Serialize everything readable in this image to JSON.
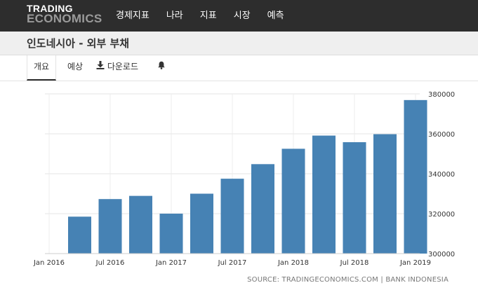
{
  "header": {
    "logo_line1": "TRADING",
    "logo_line2": "ECONOMICS",
    "nav": [
      "경제지표",
      "나라",
      "지표",
      "시장",
      "예측"
    ]
  },
  "page_title": "인도네시아 - 외부 부채",
  "tabs": {
    "overview": "개요",
    "forecast": "예상",
    "download": "다운로드"
  },
  "source": "SOURCE: TRADINGECONOMICS.COM | BANK INDONESIA",
  "colors": {
    "bar": "#4682b4",
    "topbar": "#2d2d2d"
  },
  "chart_data": {
    "type": "bar",
    "title": "",
    "xlabel": "",
    "ylabel": "",
    "categories": [
      "Apr 2016",
      "Jul 2016",
      "Oct 2016",
      "Jan 2017",
      "Apr 2017",
      "Jul 2017",
      "Oct 2017",
      "Jan 2018",
      "Apr 2018",
      "Jul 2018",
      "Oct 2018",
      "Jan 2019"
    ],
    "values": [
      318500,
      327300,
      328900,
      320000,
      330000,
      337500,
      344800,
      352500,
      359100,
      355800,
      359800,
      376900
    ],
    "x_tick_labels": [
      "Jan 2016",
      "Jul 2016",
      "Jan 2017",
      "Jul 2017",
      "Jan 2018",
      "Jul 2018",
      "Jan 2019"
    ],
    "y_ticks": [
      "300000",
      "320000",
      "340000",
      "360000",
      "380000"
    ],
    "ylim": [
      300000,
      380000
    ],
    "grid": true,
    "y_axis_side": "right"
  }
}
